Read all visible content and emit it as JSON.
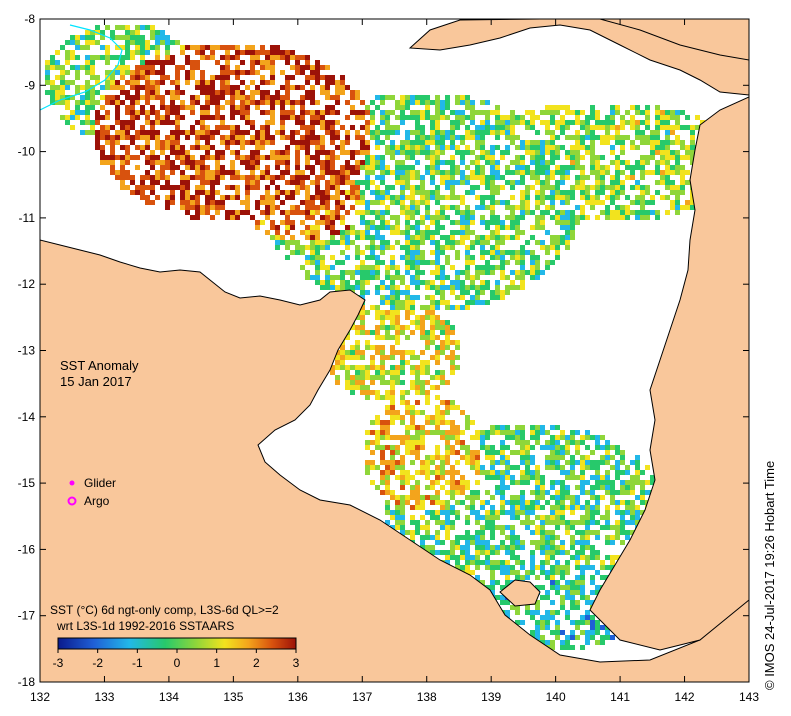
{
  "map": {
    "title": "SST Anomaly",
    "date": "15 Jan 2017",
    "x_ticks": [
      "132",
      "133",
      "134",
      "135",
      "136",
      "137",
      "138",
      "139",
      "140",
      "141",
      "142",
      "143"
    ],
    "y_ticks": [
      "-8",
      "-9",
      "-10",
      "-11",
      "-12",
      "-13",
      "-14",
      "-15",
      "-16",
      "-17",
      "-18"
    ],
    "x_range": [
      132,
      143
    ],
    "y_range": [
      -18,
      -8
    ],
    "land_color": "#f9c79b",
    "ocean_nodata_color": "#ffffff",
    "glider_color": "#ff00ff",
    "argo_color": "#ff00ff"
  },
  "legend": {
    "glider_label": "Glider",
    "argo_label": "Argo"
  },
  "colorbar": {
    "line1": "SST (°C) 6d ngt-only comp, L3S-6d QL>=2",
    "line2": "wrt L3S-1d 1992-2016 SSTAARS",
    "ticks": [
      "-3",
      "-2",
      "-1",
      "0",
      "1",
      "2",
      "3"
    ],
    "range": [
      -3,
      3
    ],
    "colors": [
      "#0a1a8c",
      "#1f5fd6",
      "#22b8e8",
      "#27c96b",
      "#8fd63a",
      "#f2e31e",
      "#f3a41c",
      "#d8520e",
      "#9c1208"
    ]
  },
  "credit": "© IMOS 24-Jul-2017 19:26 Hobart Time"
}
